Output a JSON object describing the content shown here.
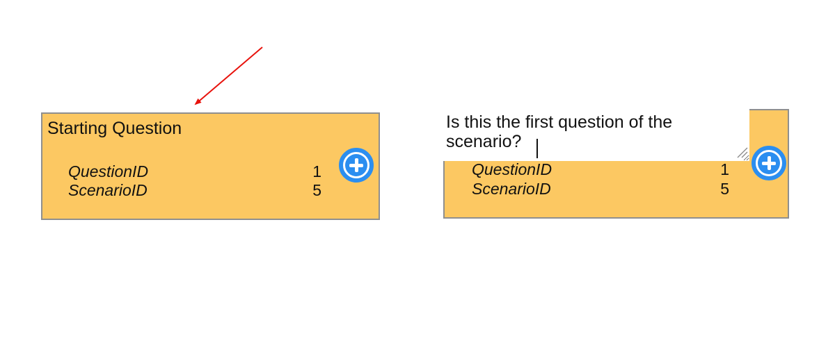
{
  "cards": [
    {
      "title": "Starting Question",
      "properties": [
        {
          "name": "QuestionID",
          "value": "1"
        },
        {
          "name": "ScenarioID",
          "value": "5"
        }
      ]
    },
    {
      "editing_title": "Is this the first question of the scenario?",
      "properties": [
        {
          "name": "QuestionID",
          "value": "1"
        },
        {
          "name": "ScenarioID",
          "value": "5"
        }
      ]
    }
  ],
  "icons": {
    "add": "plus-circle-icon",
    "resize": "resize-grip-icon",
    "annotation": "red-arrow-icon"
  },
  "colors": {
    "card_fill": "#fcc862",
    "card_border": "#8f8f8f",
    "add_button": "#2b8ef0",
    "annotation_arrow": "#e8120c"
  }
}
